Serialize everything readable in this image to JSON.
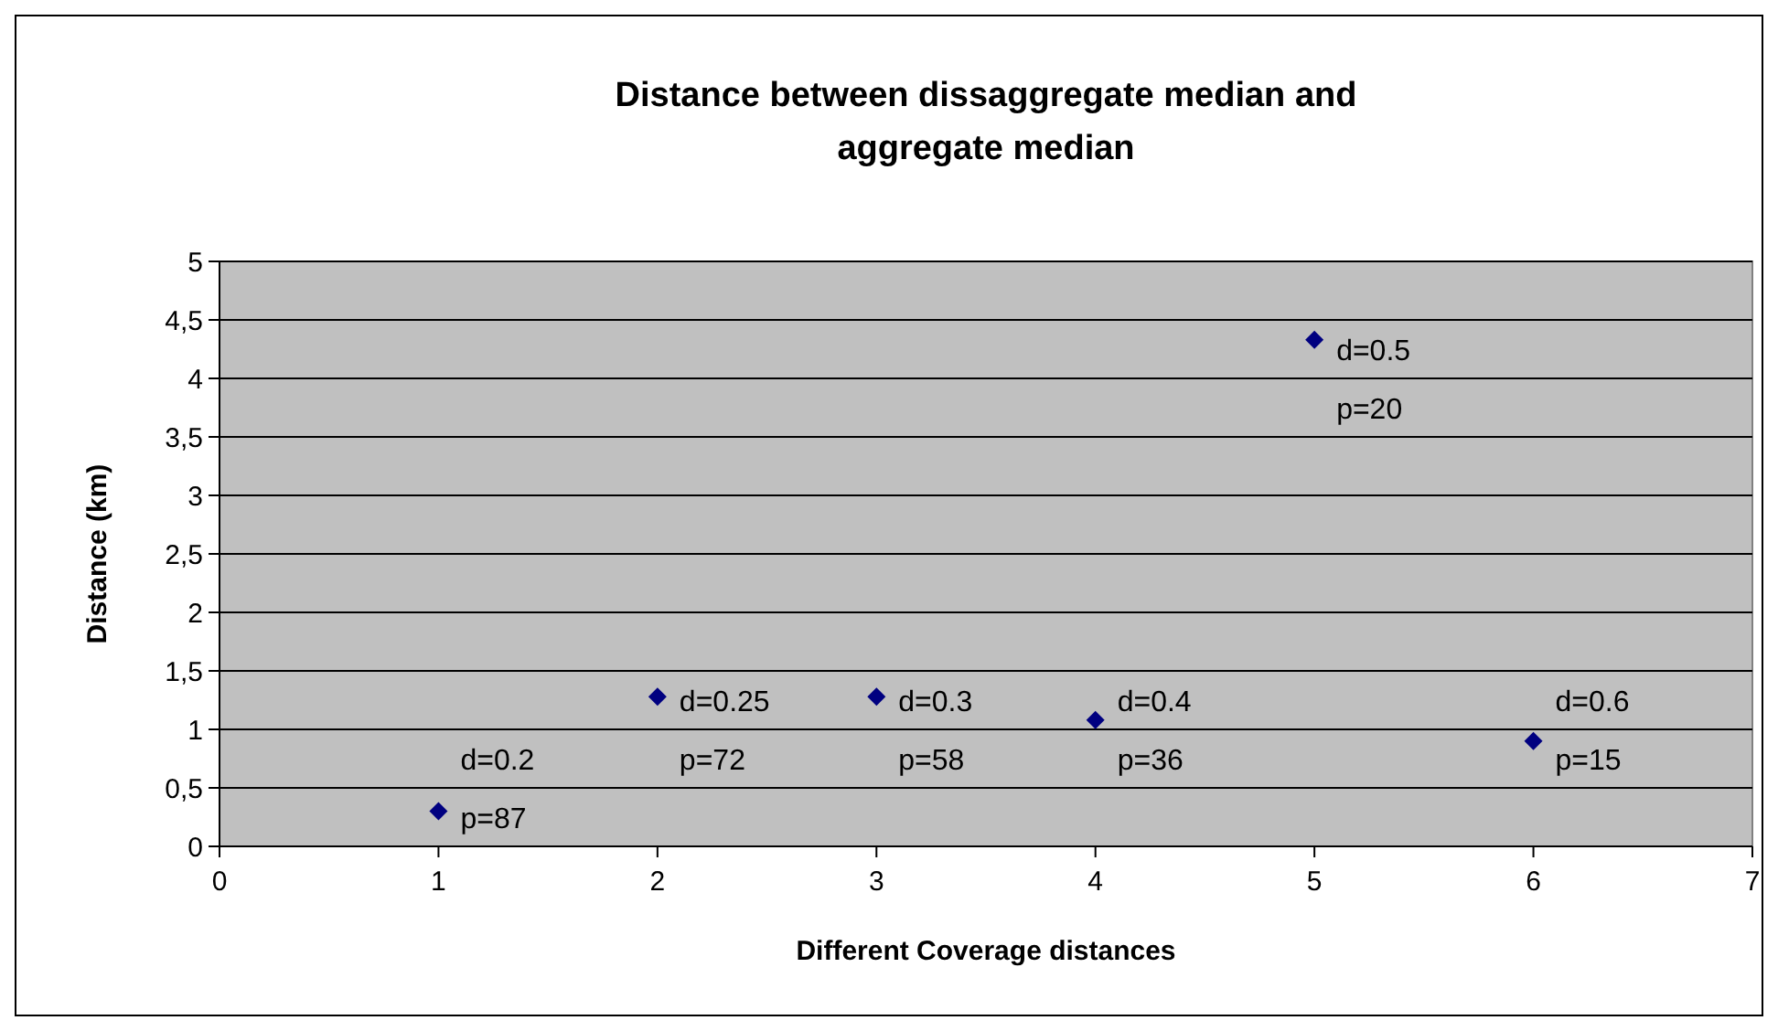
{
  "chart_data": {
    "type": "scatter",
    "title": "Distance between dissaggregate median and aggregate median",
    "xlabel": "Different Coverage distances",
    "ylabel": "Distance (km)",
    "x": [
      1,
      2,
      3,
      4,
      5,
      6
    ],
    "series": [
      {
        "color": "#000080",
        "values": [
          0.3,
          1.28,
          1.28,
          1.08,
          4.33,
          0.9
        ]
      }
    ],
    "xlim": [
      0,
      7
    ],
    "xticks": [
      0,
      1,
      2,
      3,
      4,
      5,
      6,
      7
    ],
    "ylim": [
      0,
      5
    ],
    "yticks": [
      0,
      {
        "value": 0.5,
        "label": "0,5"
      },
      1,
      {
        "value": 1.5,
        "label": "1,5"
      },
      2,
      {
        "value": 2.5,
        "label": "2,5"
      },
      3,
      {
        "value": 3.5,
        "label": "3,5"
      },
      4,
      {
        "value": 4.5,
        "label": "4,5"
      },
      5
    ],
    "grid": "y",
    "marker": "diamond",
    "legend": false,
    "annotations": [
      {
        "text": "d=0.2\np=87",
        "x": 1,
        "y": 0.3
      },
      {
        "text": "d=0.25\np=72",
        "x": 2,
        "y": 1.28
      },
      {
        "text": "d=0.3\np=58",
        "x": 3,
        "y": 1.28
      },
      {
        "text": "d=0.4\np=36",
        "x": 4,
        "y": 1.08
      },
      {
        "text": "d=0.5\np=20",
        "x": 5,
        "y": 4.33
      },
      {
        "text": "d=0.6\np=15",
        "x": 6,
        "y": 0.9
      }
    ]
  }
}
